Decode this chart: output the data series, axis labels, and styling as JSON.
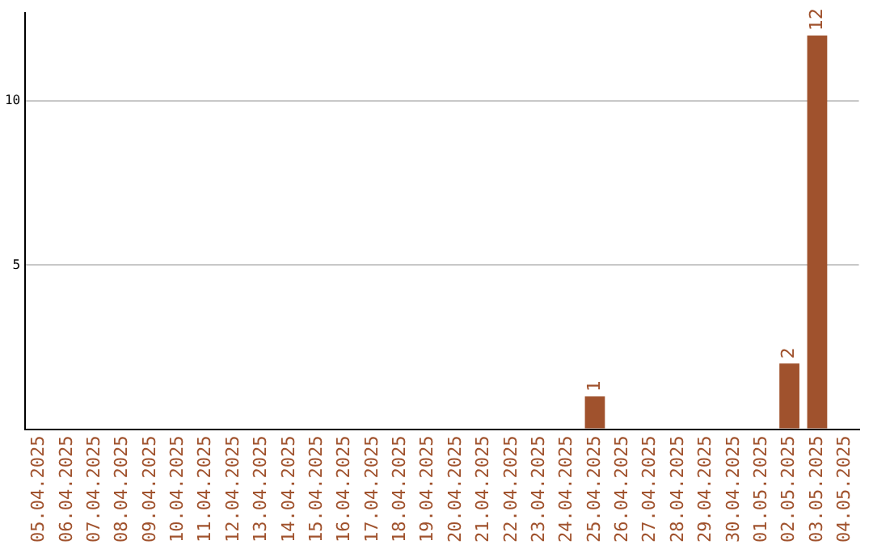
{
  "chart_data": {
    "type": "bar",
    "categories": [
      "05.04.2025",
      "06.04.2025",
      "07.04.2025",
      "08.04.2025",
      "09.04.2025",
      "10.04.2025",
      "11.04.2025",
      "12.04.2025",
      "13.04.2025",
      "14.04.2025",
      "15.04.2025",
      "16.04.2025",
      "17.04.2025",
      "18.04.2025",
      "19.04.2025",
      "20.04.2025",
      "21.04.2025",
      "22.04.2025",
      "23.04.2025",
      "24.04.2025",
      "25.04.2025",
      "26.04.2025",
      "27.04.2025",
      "28.04.2025",
      "29.04.2025",
      "30.04.2025",
      "01.05.2025",
      "02.05.2025",
      "03.05.2025",
      "04.05.2025"
    ],
    "values": [
      0,
      0,
      0,
      0,
      0,
      0,
      0,
      0,
      0,
      0,
      0,
      0,
      0,
      0,
      0,
      0,
      0,
      0,
      0,
      0,
      1,
      0,
      0,
      0,
      0,
      0,
      0,
      2,
      12,
      0
    ],
    "value_labels": [
      null,
      null,
      null,
      null,
      null,
      null,
      null,
      null,
      null,
      null,
      null,
      null,
      null,
      null,
      null,
      null,
      null,
      null,
      null,
      null,
      "1",
      null,
      null,
      null,
      null,
      null,
      null,
      "2",
      "12",
      null
    ],
    "color": "#a0522d",
    "ylim": [
      0,
      12.7
    ],
    "yticks": [
      {
        "value": 0,
        "label": null
      },
      5,
      10
    ],
    "grid": "y",
    "legend": false
  }
}
